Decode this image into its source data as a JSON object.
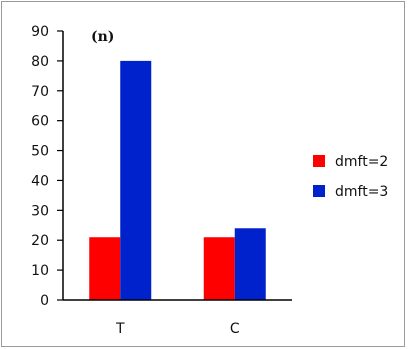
{
  "chart_data": {
    "type": "bar",
    "title": "(n)",
    "categories": [
      "T",
      "C"
    ],
    "series": [
      {
        "name": "dmft=2",
        "values": [
          21,
          21
        ],
        "color": "#ff0000"
      },
      {
        "name": "dmft=3",
        "values": [
          80,
          24
        ],
        "color": "#0022cc"
      }
    ],
    "ylim": [
      0,
      90
    ],
    "yticks": [
      0,
      10,
      20,
      30,
      40,
      50,
      60,
      70,
      80,
      90
    ],
    "xlabel": "",
    "ylabel": "",
    "grid": false,
    "legend_position": "right"
  }
}
